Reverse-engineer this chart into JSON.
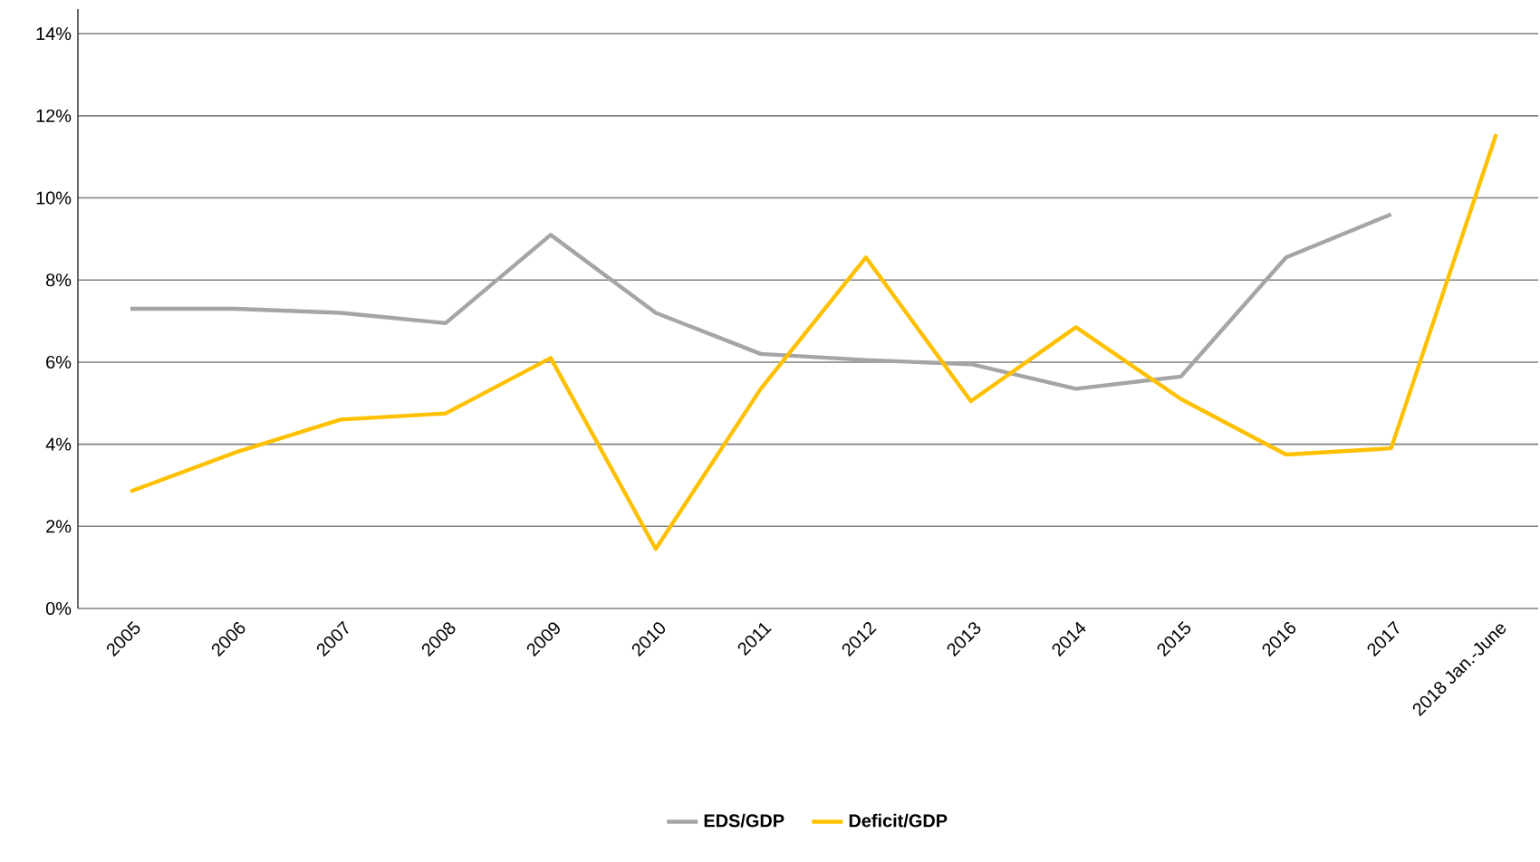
{
  "chart_data": {
    "type": "line",
    "categories": [
      "2005",
      "2006",
      "2007",
      "2008",
      "2009",
      "2010",
      "2011",
      "2012",
      "2013",
      "2014",
      "2015",
      "2016",
      "2017",
      "2018 Jan.-June"
    ],
    "series": [
      {
        "name": "EDS/GDP",
        "color": "#a5a5a5",
        "values": [
          7.3,
          7.3,
          7.2,
          6.95,
          9.1,
          7.2,
          6.2,
          6.05,
          5.95,
          5.35,
          5.65,
          8.55,
          9.6,
          null
        ]
      },
      {
        "name": "Deficit/GDP",
        "color": "#ffc000",
        "values": [
          2.85,
          3.8,
          4.6,
          4.75,
          6.1,
          1.45,
          5.35,
          8.55,
          5.05,
          6.85,
          5.1,
          3.75,
          3.9,
          11.55
        ]
      }
    ],
    "ylim": [
      0,
      14.6
    ],
    "yticks": [
      {
        "value": 0,
        "label": "0%"
      },
      {
        "value": 2,
        "label": "2%"
      },
      {
        "value": 4,
        "label": "4%"
      },
      {
        "value": 6,
        "label": "6%"
      },
      {
        "value": 8,
        "label": "8%"
      },
      {
        "value": 10,
        "label": "10%"
      },
      {
        "value": 12,
        "label": "12%"
      },
      {
        "value": 14,
        "label": "14%"
      }
    ],
    "grid": "y",
    "legend": "bottom",
    "marker": "none",
    "line_style": "solid"
  }
}
